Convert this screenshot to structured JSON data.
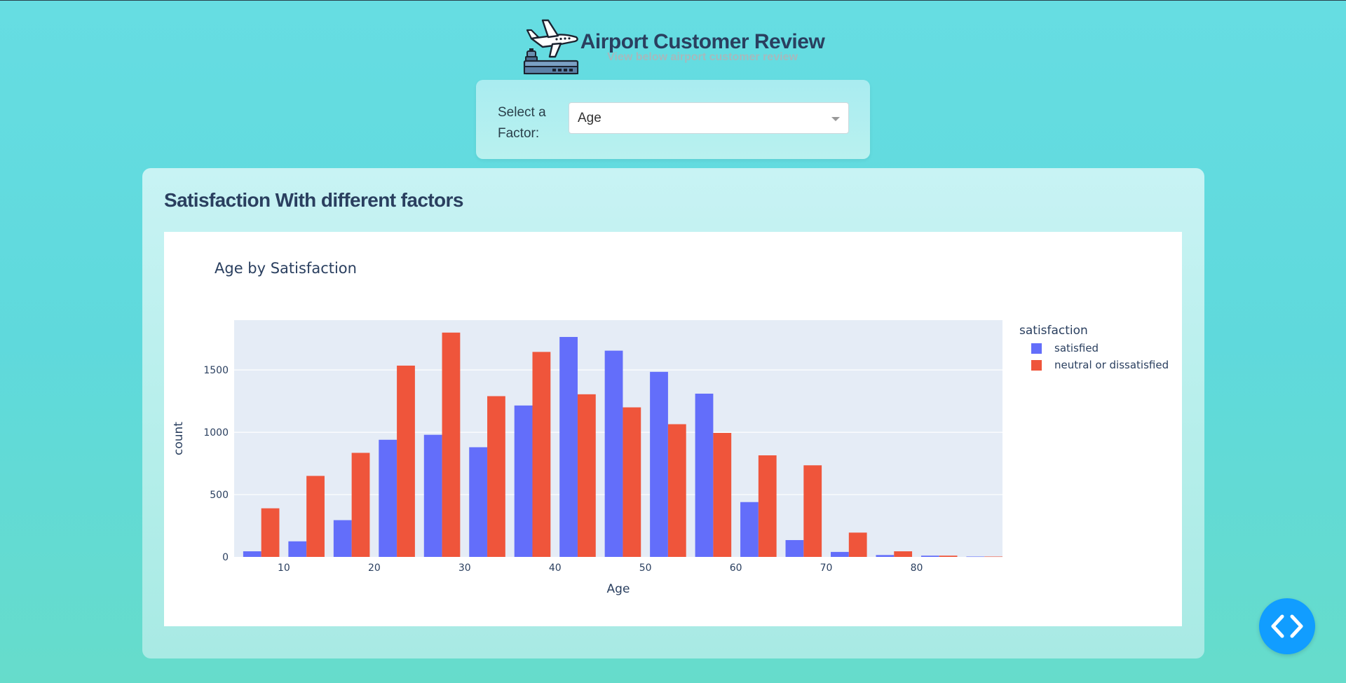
{
  "header": {
    "title": "Airport Customer Review",
    "subtitle": "View below airport customer review",
    "logo_icon": "airport-plane-icon"
  },
  "selector": {
    "label": "Select a Factor:",
    "value": "Age"
  },
  "card": {
    "title": "Satisfaction With different factors"
  },
  "chart_data": {
    "type": "bar",
    "title": "Age by Satisfaction",
    "xlabel": "Age",
    "ylabel": "count",
    "xlim": [
      4.5,
      89.5
    ],
    "ylim": [
      0,
      1900
    ],
    "xticks": [
      10,
      20,
      30,
      40,
      50,
      60,
      70,
      80
    ],
    "yticks": [
      0,
      500,
      1000,
      1500
    ],
    "bin_width": 5,
    "bin_starts": [
      5,
      10,
      15,
      20,
      25,
      30,
      35,
      40,
      45,
      50,
      55,
      60,
      65,
      70,
      75,
      80,
      85
    ],
    "legend": {
      "title": "satisfaction",
      "placement": "right"
    },
    "grid": true,
    "series": [
      {
        "name": "satisfied",
        "color": "#636efa",
        "values": [
          45,
          125,
          295,
          940,
          980,
          880,
          1215,
          1765,
          1655,
          1485,
          1310,
          440,
          135,
          40,
          15,
          10,
          3
        ]
      },
      {
        "name": "neutral or dissatisfied",
        "color": "#ef553b",
        "values": [
          390,
          650,
          835,
          1535,
          1800,
          1290,
          1645,
          1305,
          1200,
          1065,
          995,
          815,
          735,
          195,
          45,
          10,
          3
        ]
      }
    ]
  },
  "fab": {
    "icon": "code-brackets-icon",
    "color": "#119dff"
  }
}
